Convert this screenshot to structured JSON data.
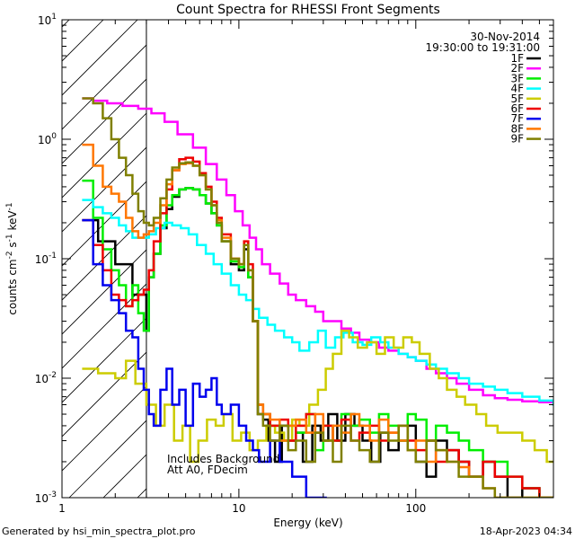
{
  "chart_data": {
    "type": "line",
    "title": "Count Spectra for RHESSI Front Segments",
    "xlabel": "Energy (keV)",
    "ylabel": "counts cm",
    "ylabel_sup1": "-2",
    "ylabel_mid": " s",
    "ylabel_sup2": "-1",
    "ylabel_end": " keV",
    "ylabel_sup3": "-1",
    "xscale": "log",
    "yscale": "log",
    "xlim": [
      1,
      600
    ],
    "ylim": [
      0.001,
      10
    ],
    "x_ticks": [
      {
        "value": 1,
        "label": "1"
      },
      {
        "value": 10,
        "label": "10"
      },
      {
        "value": 100,
        "label": "100"
      }
    ],
    "y_ticks": [
      {
        "value": 10,
        "base": "10",
        "exp": "1"
      },
      {
        "value": 1,
        "base": "10",
        "exp": "0"
      },
      {
        "value": 0.1,
        "base": "10",
        "exp": "-1"
      },
      {
        "value": 0.01,
        "base": "10",
        "exp": "-2"
      },
      {
        "value": 0.001,
        "base": "10",
        "exp": "-3"
      }
    ],
    "shaded_region_xmax": 3,
    "legend_header": [
      "30-Nov-2014",
      "19:30:00 to 19:31:00"
    ],
    "annotations": [
      "Includes Background",
      "Att A0, FDecim"
    ],
    "series": [
      {
        "name": "1F",
        "color": "#000000",
        "x": [
          1.3,
          1.6,
          2,
          2.5,
          3,
          3.1,
          3.3,
          3.6,
          3.9,
          4.2,
          4.6,
          5.0,
          5.5,
          6.0,
          6.5,
          7.0,
          7.5,
          8.0,
          9.0,
          10.0,
          10.7,
          11.3,
          12,
          12.8,
          13.7,
          14.7,
          16,
          17.5,
          19,
          21,
          23,
          26,
          29,
          32,
          36,
          40,
          45,
          50,
          56,
          63,
          70,
          80,
          90,
          100,
          115,
          130,
          150,
          175,
          200,
          240,
          280,
          330,
          400,
          500,
          600
        ],
        "y": [
          0.21,
          0.14,
          0.09,
          0.05,
          0.025,
          0.07,
          0.11,
          0.18,
          0.26,
          0.33,
          0.38,
          0.39,
          0.38,
          0.34,
          0.29,
          0.24,
          0.19,
          0.14,
          0.09,
          0.08,
          0.12,
          0.07,
          0.03,
          0.005,
          0.0045,
          0.003,
          0.002,
          0.004,
          0.003,
          0.0035,
          0.002,
          0.004,
          0.003,
          0.005,
          0.003,
          0.005,
          0.004,
          0.003,
          0.002,
          0.0035,
          0.0025,
          0.003,
          0.004,
          0.002,
          0.0015,
          0.003,
          0.0025,
          0.002,
          0.0015,
          0.002,
          0.0015,
          0.001,
          0.0012,
          0.001,
          0.001
        ]
      },
      {
        "name": "2F",
        "color": "#ff00ff",
        "x": [
          1.3,
          1.5,
          1.8,
          2.2,
          2.7,
          3.2,
          3.8,
          4.5,
          5.5,
          6.5,
          7.5,
          8.5,
          9.5,
          10.5,
          11.5,
          12.5,
          13.5,
          15,
          17,
          19,
          21,
          24,
          27,
          30,
          34,
          38,
          43,
          48,
          55,
          62,
          70,
          80,
          90,
          100,
          115,
          130,
          150,
          170,
          200,
          240,
          280,
          330,
          400,
          500,
          600
        ],
        "y": [
          2.2,
          2.1,
          2.0,
          1.9,
          1.8,
          1.65,
          1.4,
          1.1,
          0.85,
          0.62,
          0.46,
          0.34,
          0.25,
          0.19,
          0.15,
          0.12,
          0.09,
          0.075,
          0.062,
          0.05,
          0.045,
          0.04,
          0.036,
          0.03,
          0.03,
          0.026,
          0.024,
          0.021,
          0.02,
          0.018,
          0.017,
          0.016,
          0.015,
          0.014,
          0.012,
          0.011,
          0.01,
          0.009,
          0.008,
          0.0072,
          0.0068,
          0.0066,
          0.0064,
          0.0063,
          0.0063
        ]
      },
      {
        "name": "3F",
        "color": "#00ee00",
        "x": [
          1.3,
          1.5,
          1.7,
          1.9,
          2.1,
          2.3,
          2.5,
          2.7,
          2.9,
          3.1,
          3.3,
          3.6,
          3.9,
          4.2,
          4.6,
          5.0,
          5.5,
          6.0,
          6.5,
          7.0,
          7.5,
          8.0,
          9.0,
          10.0,
          10.7,
          11.3,
          12,
          12.8,
          13.7,
          15,
          17,
          19,
          21,
          24,
          27,
          30,
          34,
          38,
          43,
          48,
          55,
          62,
          70,
          80,
          90,
          100,
          115,
          130,
          150,
          175,
          200,
          240,
          280,
          330,
          400,
          500,
          600
        ],
        "y": [
          0.45,
          0.22,
          0.12,
          0.08,
          0.06,
          0.04,
          0.06,
          0.035,
          0.025,
          0.07,
          0.11,
          0.19,
          0.28,
          0.34,
          0.38,
          0.39,
          0.38,
          0.34,
          0.29,
          0.24,
          0.19,
          0.14,
          0.095,
          0.085,
          0.13,
          0.07,
          0.03,
          0.006,
          0.005,
          0.004,
          0.003,
          0.004,
          0.0035,
          0.005,
          0.0025,
          0.004,
          0.003,
          0.005,
          0.004,
          0.0045,
          0.0035,
          0.005,
          0.004,
          0.003,
          0.005,
          0.0045,
          0.003,
          0.004,
          0.0035,
          0.003,
          0.0025,
          0.002,
          0.002,
          0.0015,
          0.0012,
          0.001,
          0.001
        ]
      },
      {
        "name": "4F",
        "color": "#00ffff",
        "x": [
          1.3,
          1.5,
          1.7,
          1.9,
          2.1,
          2.3,
          2.5,
          2.8,
          3.1,
          3.4,
          3.8,
          4.2,
          4.7,
          5.2,
          5.8,
          6.5,
          7.2,
          8.0,
          9.0,
          10.0,
          11.0,
          12.0,
          13.0,
          14.5,
          16,
          18,
          20,
          22,
          25,
          28,
          31,
          35,
          39,
          44,
          50,
          56,
          63,
          70,
          80,
          90,
          100,
          115,
          130,
          150,
          175,
          200,
          240,
          280,
          330,
          400,
          500,
          600
        ],
        "y": [
          0.31,
          0.27,
          0.24,
          0.22,
          0.19,
          0.17,
          0.15,
          0.15,
          0.16,
          0.18,
          0.2,
          0.19,
          0.18,
          0.16,
          0.13,
          0.11,
          0.09,
          0.075,
          0.06,
          0.05,
          0.045,
          0.038,
          0.032,
          0.028,
          0.025,
          0.022,
          0.02,
          0.017,
          0.02,
          0.025,
          0.018,
          0.022,
          0.024,
          0.02,
          0.019,
          0.022,
          0.02,
          0.018,
          0.016,
          0.015,
          0.014,
          0.013,
          0.012,
          0.011,
          0.01,
          0.009,
          0.0085,
          0.008,
          0.0075,
          0.007,
          0.0065,
          0.006
        ]
      },
      {
        "name": "5F",
        "color": "#cccc00",
        "x": [
          1.3,
          1.6,
          2.0,
          2.3,
          2.6,
          3.0,
          3.4,
          3.8,
          4.3,
          4.8,
          5.3,
          5.9,
          6.6,
          7.4,
          8.2,
          9.2,
          10.3,
          11.5,
          12.8,
          14.3,
          16,
          18,
          20,
          22,
          25,
          28,
          31,
          34,
          38,
          42,
          47,
          53,
          60,
          67,
          75,
          85,
          95,
          105,
          120,
          135,
          150,
          170,
          190,
          220,
          250,
          290,
          340,
          400,
          470,
          550,
          600
        ],
        "y": [
          0.012,
          0.011,
          0.01,
          0.014,
          0.009,
          0.006,
          0.004,
          0.006,
          0.003,
          0.004,
          0.002,
          0.003,
          0.0045,
          0.004,
          0.005,
          0.003,
          0.0035,
          0.0025,
          0.003,
          0.004,
          0.0035,
          0.003,
          0.0045,
          0.004,
          0.006,
          0.008,
          0.012,
          0.016,
          0.025,
          0.022,
          0.018,
          0.02,
          0.016,
          0.022,
          0.018,
          0.022,
          0.02,
          0.016,
          0.012,
          0.01,
          0.008,
          0.007,
          0.006,
          0.005,
          0.004,
          0.0035,
          0.0035,
          0.003,
          0.0025,
          0.002,
          0.002
        ]
      },
      {
        "name": "6F",
        "color": "#ee0000",
        "x": [
          1.3,
          1.5,
          1.7,
          1.9,
          2.1,
          2.3,
          2.5,
          2.7,
          2.9,
          3.1,
          3.3,
          3.6,
          3.9,
          4.2,
          4.6,
          5.0,
          5.5,
          6.0,
          6.5,
          7.0,
          7.5,
          8.0,
          9.0,
          10.0,
          10.7,
          11.3,
          12,
          12.8,
          13.7,
          15,
          17,
          19,
          21,
          24,
          27,
          30,
          34,
          38,
          43,
          48,
          55,
          62,
          70,
          80,
          90,
          100,
          115,
          130,
          150,
          175,
          200,
          240,
          280,
          330,
          400,
          500,
          600
        ],
        "y": [
          0.21,
          0.13,
          0.08,
          0.05,
          0.045,
          0.04,
          0.045,
          0.05,
          0.055,
          0.08,
          0.14,
          0.24,
          0.38,
          0.55,
          0.68,
          0.7,
          0.65,
          0.52,
          0.4,
          0.3,
          0.22,
          0.16,
          0.1,
          0.09,
          0.14,
          0.09,
          0.03,
          0.006,
          0.005,
          0.004,
          0.0045,
          0.003,
          0.004,
          0.005,
          0.0035,
          0.004,
          0.003,
          0.0045,
          0.003,
          0.0035,
          0.004,
          0.003,
          0.0035,
          0.004,
          0.003,
          0.0025,
          0.003,
          0.002,
          0.0025,
          0.002,
          0.0015,
          0.002,
          0.0015,
          0.0015,
          0.0012,
          0.001,
          0.001
        ]
      },
      {
        "name": "7F",
        "color": "#0000ee",
        "x": [
          1.3,
          1.5,
          1.7,
          1.9,
          2.1,
          2.3,
          2.5,
          2.7,
          2.9,
          3.1,
          3.3,
          3.6,
          3.9,
          4.2,
          4.6,
          5.0,
          5.5,
          6.0,
          6.5,
          7.0,
          7.5,
          8.0,
          9.0,
          10.0,
          11,
          12,
          13,
          15,
          17,
          20,
          24,
          30
        ],
        "y": [
          0.21,
          0.09,
          0.06,
          0.045,
          0.035,
          0.025,
          0.022,
          0.012,
          0.008,
          0.005,
          0.004,
          0.008,
          0.012,
          0.006,
          0.008,
          0.004,
          0.009,
          0.007,
          0.008,
          0.01,
          0.006,
          0.005,
          0.006,
          0.004,
          0.003,
          0.0025,
          0.002,
          0.003,
          0.002,
          0.0015,
          0.001,
          0.001
        ]
      },
      {
        "name": "8F",
        "color": "#ff7700",
        "x": [
          1.3,
          1.5,
          1.7,
          1.9,
          2.1,
          2.3,
          2.5,
          2.7,
          2.9,
          3.1,
          3.3,
          3.6,
          3.9,
          4.2,
          4.6,
          5.0,
          5.5,
          6.0,
          6.5,
          7.0,
          7.5,
          8.0,
          9.0,
          10.0,
          10.7,
          11.3,
          12,
          12.8,
          13.7,
          15,
          17,
          19,
          21,
          24,
          27,
          30,
          34,
          38,
          43,
          48,
          55,
          62,
          70,
          80,
          90,
          100,
          115,
          130,
          150,
          175,
          200,
          240,
          280,
          330,
          400,
          500,
          600
        ],
        "y": [
          0.9,
          0.6,
          0.4,
          0.35,
          0.3,
          0.22,
          0.17,
          0.15,
          0.16,
          0.17,
          0.2,
          0.28,
          0.42,
          0.55,
          0.62,
          0.63,
          0.6,
          0.5,
          0.38,
          0.28,
          0.21,
          0.15,
          0.1,
          0.09,
          0.13,
          0.08,
          0.03,
          0.006,
          0.005,
          0.0045,
          0.003,
          0.004,
          0.0045,
          0.0035,
          0.005,
          0.003,
          0.004,
          0.0035,
          0.005,
          0.004,
          0.003,
          0.0045,
          0.0035,
          0.003,
          0.0025,
          0.003,
          0.002,
          0.0025,
          0.002,
          0.0018,
          0.0015,
          0.0012,
          0.001,
          0.001,
          0.001,
          0.001,
          0.001
        ]
      },
      {
        "name": "9F",
        "color": "#808000",
        "x": [
          1.3,
          1.5,
          1.7,
          1.9,
          2.1,
          2.3,
          2.5,
          2.7,
          2.9,
          3.1,
          3.3,
          3.6,
          3.9,
          4.2,
          4.6,
          5.0,
          5.5,
          6.0,
          6.5,
          7.0,
          7.5,
          8.0,
          9.0,
          10.0,
          10.7,
          11.3,
          12,
          12.8,
          13.7,
          15,
          17,
          19,
          21,
          24,
          27,
          30,
          34,
          38,
          43,
          48,
          55,
          62,
          70,
          80,
          90,
          100,
          115,
          130,
          150,
          175,
          200,
          240,
          280,
          330,
          400,
          500,
          600
        ],
        "y": [
          2.2,
          2.0,
          1.5,
          1.0,
          0.7,
          0.5,
          0.35,
          0.25,
          0.2,
          0.19,
          0.22,
          0.32,
          0.46,
          0.58,
          0.63,
          0.64,
          0.6,
          0.5,
          0.38,
          0.28,
          0.2,
          0.14,
          0.1,
          0.09,
          0.13,
          0.08,
          0.03,
          0.005,
          0.004,
          0.003,
          0.004,
          0.0025,
          0.003,
          0.002,
          0.0035,
          0.003,
          0.002,
          0.004,
          0.003,
          0.0025,
          0.002,
          0.0035,
          0.003,
          0.004,
          0.0025,
          0.002,
          0.003,
          0.0025,
          0.002,
          0.0015,
          0.0015,
          0.0012,
          0.001,
          0.001,
          0.001,
          0.001,
          0.001
        ]
      }
    ]
  },
  "footer": {
    "left": "Generated by hsi_min_spectra_plot.pro",
    "right": "18-Apr-2023 04:34"
  }
}
